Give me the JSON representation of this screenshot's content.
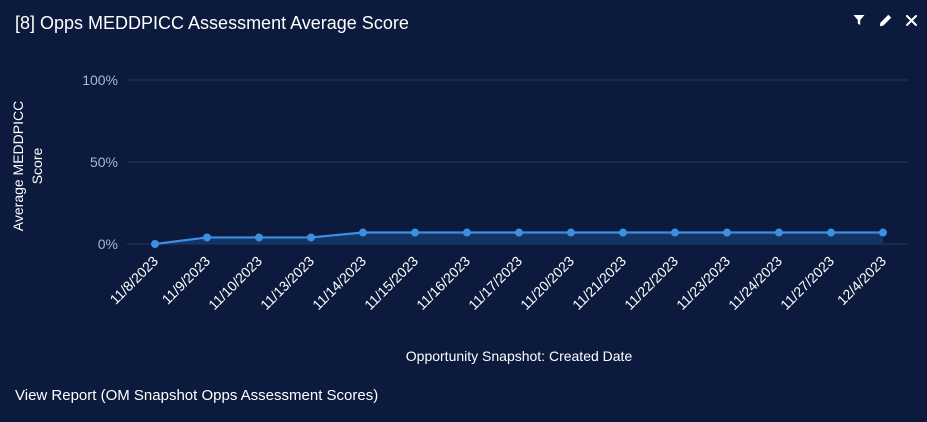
{
  "header": {
    "title": "[8] Opps MEDDPICC Assessment Average Score",
    "actions": [
      {
        "icon": "filter-icon"
      },
      {
        "icon": "pencil-icon"
      },
      {
        "icon": "close-icon"
      }
    ]
  },
  "footer": {
    "link_label": "View Report (OM Snapshot Opps Assessment Scores)"
  },
  "colors": {
    "background": "#0b1a3d",
    "line": "#3d8fe0",
    "area": "#133768",
    "grid": "#2a3a5e",
    "tick_text": "#a9b7cf",
    "label_text": "#ffffff"
  },
  "chart_data": {
    "type": "area",
    "title": "",
    "xlabel": "Opportunity Snapshot: Created Date",
    "ylabel": [
      "Average MEDDPICC",
      "Score"
    ],
    "ylim": [
      0,
      100
    ],
    "yticks": [
      {
        "value": 0,
        "label": "0%"
      },
      {
        "value": 50,
        "label": "50%"
      },
      {
        "value": 100,
        "label": "100%"
      }
    ],
    "grid": true,
    "legend": "none",
    "categories": [
      "11/8/2023",
      "11/9/2023",
      "11/10/2023",
      "11/13/2023",
      "11/14/2023",
      "11/15/2023",
      "11/16/2023",
      "11/17/2023",
      "11/20/2023",
      "11/21/2023",
      "11/22/2023",
      "11/23/2023",
      "11/24/2023",
      "11/27/2023",
      "12/4/2023"
    ],
    "series": [
      {
        "values": [
          0,
          4,
          4,
          4,
          7,
          7,
          7,
          7,
          7,
          7,
          7,
          7,
          7,
          7,
          7
        ]
      }
    ]
  }
}
